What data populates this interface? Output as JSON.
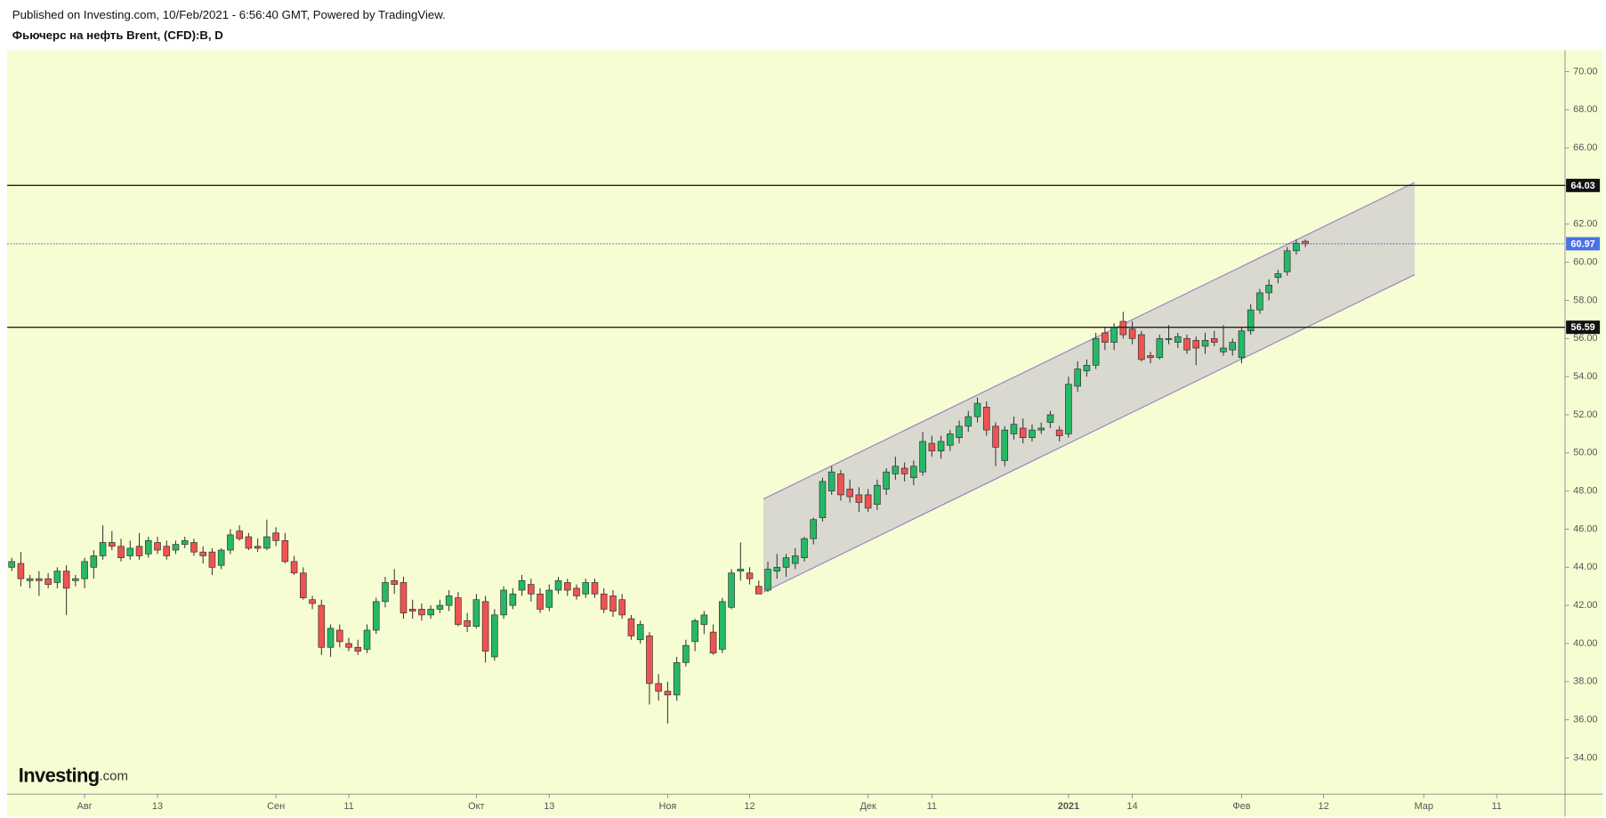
{
  "chart_data": {
    "type": "candlestick",
    "published": "Published on Investing.com, 10/Feb/2021 - 6:56:40 GMT, Powered by TradingView.",
    "title": "Фьючерс на нефть Brent, (CFD):B, D",
    "logo": {
      "brand": "Investing",
      "suffix": ".com"
    },
    "up_color": "#26b865",
    "down_color": "#ef5350",
    "categories": [
      null,
      null,
      null,
      null,
      null,
      null,
      null,
      null,
      "Авг",
      null,
      null,
      null,
      null,
      null,
      null,
      null,
      "13",
      null,
      null,
      null,
      null,
      null,
      null,
      null,
      null,
      null,
      null,
      null,
      null,
      "Сен",
      null,
      null,
      null,
      null,
      null,
      null,
      null,
      "11",
      null,
      null,
      null,
      null,
      null,
      null,
      null,
      null,
      null,
      null,
      null,
      null,
      null,
      "Окт",
      null,
      null,
      null,
      null,
      null,
      null,
      null,
      "13",
      null,
      null,
      null,
      null,
      null,
      null,
      null,
      null,
      null,
      null,
      null,
      null,
      "Ноя",
      null,
      null,
      null,
      null,
      null,
      null,
      null,
      null,
      "12",
      null,
      null,
      null,
      null,
      null,
      null,
      null,
      null,
      null,
      null,
      null,
      null,
      "Дек",
      null,
      null,
      null,
      null,
      null,
      null,
      "11",
      null,
      null,
      null,
      null,
      null,
      null,
      null,
      null,
      null,
      null,
      null,
      null,
      null,
      null,
      "2021",
      null,
      null,
      null,
      null,
      null,
      null,
      "14",
      null,
      null,
      null,
      null,
      null,
      null,
      null,
      null,
      null,
      null,
      null,
      "Фев",
      null,
      null,
      null,
      null,
      null,
      null,
      null,
      null,
      "12",
      null,
      null,
      null,
      null,
      null,
      null,
      null,
      null,
      null,
      null,
      "Мар",
      null,
      null,
      null,
      null,
      null,
      null,
      null,
      "11",
      null,
      null,
      null,
      null,
      null,
      null,
      null
    ],
    "open": [
      44.0,
      44.2,
      43.3,
      43.4,
      43.4,
      43.2,
      43.8,
      43.3,
      43.4,
      44.0,
      44.6,
      45.3,
      45.1,
      44.6,
      45.1,
      44.7,
      45.3,
      45.1,
      44.9,
      45.2,
      45.3,
      44.8,
      44.8,
      44.1,
      44.9,
      45.9,
      45.6,
      45.1,
      45.0,
      45.8,
      45.4,
      44.3,
      43.7,
      42.3,
      42.0,
      39.8,
      40.7,
      40.0,
      39.8,
      39.7,
      40.7,
      42.2,
      43.3,
      43.2,
      41.8,
      41.8,
      41.5,
      41.8,
      42.0,
      42.4,
      41.2,
      40.9,
      42.2,
      39.3,
      41.5,
      42.0,
      42.8,
      43.1,
      42.6,
      41.9,
      42.8,
      43.2,
      42.9,
      42.6,
      43.2,
      42.6,
      42.5,
      42.3,
      41.3,
      40.2,
      40.4,
      37.9,
      37.5,
      37.3,
      39.0,
      40.1,
      41.0,
      40.6,
      39.7,
      41.9,
      43.8,
      43.7,
      43.0,
      42.8,
      43.8,
      44.0,
      44.2,
      44.5,
      45.5,
      46.6,
      48.0,
      48.9,
      48.1,
      47.8,
      47.8,
      47.3,
      48.1,
      48.9,
      49.2,
      48.7,
      49.0,
      50.5,
      50.1,
      50.4,
      50.8,
      51.4,
      51.9,
      52.4,
      51.4,
      49.6,
      51.0,
      51.3,
      50.8,
      51.2,
      51.6,
      51.2,
      51.0,
      53.5,
      54.3,
      54.6,
      56.3,
      55.8,
      56.9,
      56.5,
      56.2,
      55.1,
      55.0,
      56.0,
      55.8,
      56.0,
      55.9,
      55.6,
      56.0,
      55.3,
      55.4,
      55.0,
      56.4,
      57.5,
      58.4,
      59.2,
      59.5,
      60.6,
      61.1,
      null,
      null,
      null,
      null,
      null,
      null,
      null,
      null,
      null,
      null,
      null,
      null,
      null,
      null,
      null,
      null,
      null,
      null,
      null,
      null,
      null,
      null,
      null,
      null,
      null,
      null,
      null,
      null
    ],
    "high": [
      44.5,
      44.8,
      43.6,
      43.8,
      43.7,
      44.0,
      44.1,
      43.6,
      44.5,
      44.9,
      46.2,
      45.9,
      45.5,
      45.4,
      45.8,
      45.6,
      45.6,
      45.4,
      45.4,
      45.6,
      45.5,
      45.1,
      45.0,
      45.0,
      46.0,
      46.2,
      45.8,
      45.5,
      46.5,
      46.1,
      45.8,
      44.6,
      44.0,
      42.5,
      42.3,
      41.0,
      41.0,
      40.3,
      40.2,
      41.0,
      42.4,
      43.5,
      43.9,
      43.5,
      42.3,
      42.1,
      42.0,
      42.3,
      42.8,
      42.7,
      41.6,
      42.6,
      42.5,
      41.8,
      43.0,
      42.9,
      43.6,
      43.4,
      42.9,
      43.1,
      43.5,
      43.4,
      43.1,
      43.4,
      43.4,
      42.9,
      42.8,
      42.6,
      41.5,
      41.2,
      40.6,
      38.4,
      38.0,
      39.3,
      40.2,
      41.3,
      41.7,
      41.0,
      42.4,
      43.9,
      45.3,
      44.0,
      43.3,
      44.3,
      44.7,
      44.7,
      45.0,
      45.6,
      46.6,
      48.7,
      49.3,
      49.1,
      48.6,
      48.2,
      48.1,
      48.6,
      49.2,
      49.8,
      49.5,
      49.6,
      51.1,
      50.9,
      50.9,
      51.2,
      51.7,
      52.2,
      52.9,
      52.7,
      51.6,
      51.4,
      51.9,
      51.8,
      51.5,
      51.6,
      52.2,
      51.4,
      54.0,
      54.8,
      54.9,
      56.3,
      56.6,
      56.8,
      57.4,
      56.9,
      56.4,
      55.3,
      56.2,
      56.7,
      56.3,
      56.2,
      56.1,
      56.3,
      56.4,
      56.7,
      56.0,
      56.6,
      57.8,
      58.6,
      59.1,
      59.6,
      60.8,
      61.2,
      61.2,
      null,
      null,
      null,
      null,
      null,
      null,
      null,
      null,
      null,
      null,
      null,
      null,
      null,
      null,
      null,
      null,
      null,
      null,
      null,
      null,
      null,
      null,
      null,
      null,
      null,
      null,
      null,
      null
    ],
    "low": [
      43.8,
      43.0,
      42.9,
      42.5,
      42.9,
      42.9,
      41.5,
      43.0,
      42.9,
      43.4,
      44.4,
      44.9,
      44.3,
      44.4,
      44.4,
      44.5,
      44.7,
      44.4,
      44.7,
      45.0,
      44.6,
      44.2,
      43.6,
      43.9,
      44.7,
      45.4,
      44.9,
      44.8,
      44.9,
      45.1,
      44.2,
      43.6,
      42.3,
      41.8,
      39.4,
      39.3,
      39.8,
      39.6,
      39.4,
      39.5,
      40.5,
      41.9,
      42.6,
      41.3,
      41.3,
      41.2,
      41.3,
      41.6,
      41.7,
      40.9,
      40.6,
      40.8,
      39.0,
      39.1,
      41.3,
      41.8,
      42.5,
      42.2,
      41.6,
      41.7,
      42.6,
      42.5,
      42.3,
      42.4,
      42.4,
      41.6,
      41.4,
      41.3,
      40.2,
      40.0,
      36.8,
      37.0,
      35.8,
      37.0,
      38.8,
      39.6,
      40.5,
      39.4,
      39.5,
      41.8,
      43.3,
      43.1,
      42.6,
      42.7,
      43.4,
      43.5,
      43.9,
      44.3,
      45.2,
      46.4,
      47.8,
      47.5,
      47.4,
      46.9,
      46.9,
      47.0,
      47.8,
      48.6,
      48.5,
      48.3,
      48.8,
      49.8,
      49.7,
      50.1,
      50.5,
      51.1,
      51.6,
      50.9,
      49.3,
      49.3,
      50.7,
      50.5,
      50.6,
      51.0,
      51.3,
      50.6,
      50.8,
      53.2,
      54.0,
      54.4,
      55.4,
      55.4,
      56.0,
      55.7,
      54.8,
      54.7,
      54.9,
      55.7,
      55.5,
      55.2,
      54.6,
      55.2,
      55.6,
      55.1,
      55.1,
      54.7,
      56.2,
      57.3,
      58.0,
      58.9,
      59.3,
      60.4,
      60.8,
      null,
      null,
      null,
      null,
      null,
      null,
      null,
      null,
      null,
      null,
      null,
      null,
      null,
      null,
      null,
      null,
      null,
      null,
      null,
      null,
      null,
      null,
      null,
      null,
      null,
      null,
      null,
      null
    ],
    "close": [
      44.3,
      43.4,
      43.4,
      43.3,
      43.1,
      43.8,
      42.9,
      43.4,
      44.3,
      44.6,
      45.3,
      45.1,
      44.5,
      45.0,
      44.6,
      45.4,
      44.9,
      44.6,
      45.2,
      45.4,
      44.8,
      44.6,
      44.0,
      44.9,
      45.7,
      45.5,
      45.0,
      45.0,
      45.6,
      45.4,
      44.3,
      43.7,
      42.4,
      42.1,
      39.8,
      40.8,
      40.1,
      39.8,
      39.6,
      40.7,
      42.2,
      43.2,
      43.1,
      41.6,
      41.7,
      41.5,
      41.8,
      42.0,
      42.5,
      41.0,
      40.9,
      42.3,
      39.6,
      41.5,
      42.8,
      42.6,
      43.3,
      42.6,
      41.8,
      42.8,
      43.3,
      42.8,
      42.5,
      43.2,
      42.6,
      41.8,
      41.7,
      41.5,
      40.4,
      41.0,
      37.9,
      37.5,
      37.3,
      39.0,
      39.9,
      41.2,
      41.5,
      39.5,
      42.2,
      43.7,
      43.9,
      43.4,
      42.6,
      43.9,
      44.0,
      44.5,
      44.6,
      45.5,
      46.5,
      48.5,
      49.0,
      47.8,
      47.7,
      47.4,
      47.1,
      48.3,
      49.0,
      49.3,
      48.9,
      49.3,
      50.6,
      50.1,
      50.6,
      51.0,
      51.4,
      51.9,
      52.6,
      51.2,
      50.3,
      51.2,
      51.5,
      50.8,
      51.2,
      51.3,
      52.0,
      50.9,
      53.6,
      54.4,
      54.6,
      56.0,
      55.8,
      56.6,
      56.2,
      56.0,
      54.9,
      55.0,
      56.0,
      56.0,
      56.1,
      55.4,
      55.5,
      55.9,
      55.8,
      55.5,
      55.8,
      56.4,
      57.5,
      58.4,
      58.8,
      59.4,
      60.6,
      61.0,
      60.97,
      null,
      null,
      null,
      null,
      null,
      null,
      null,
      null,
      null,
      null,
      null,
      null,
      null,
      null,
      null,
      null,
      null,
      null,
      null,
      null,
      null,
      null,
      null,
      null,
      null,
      null,
      null,
      null
    ],
    "ylim": [
      32.1,
      71.07
    ],
    "yticks": [
      {
        "value": 34,
        "label": "34.00"
      },
      {
        "value": 36,
        "label": "36.00"
      },
      {
        "value": 38,
        "label": "38.00"
      },
      {
        "value": 40,
        "label": "40.00"
      },
      {
        "value": 42,
        "label": "42.00"
      },
      {
        "value": 44,
        "label": "44.00"
      },
      {
        "value": 46,
        "label": "46.00"
      },
      {
        "value": 48,
        "label": "48.00"
      },
      {
        "value": 50,
        "label": "50.00"
      },
      {
        "value": 52,
        "label": "52.00"
      },
      {
        "value": 54,
        "label": "54.00"
      },
      {
        "value": 56,
        "label": "56.00"
      },
      {
        "value": 58,
        "label": "58.00"
      },
      {
        "value": 60,
        "label": "60.00"
      },
      {
        "value": 62,
        "label": "62.00"
      },
      {
        "value": 64,
        "label": "64.00"
      },
      {
        "value": 66,
        "label": "66.00"
      },
      {
        "value": 68,
        "label": "68.00"
      },
      {
        "value": 70,
        "label": "70.00"
      }
    ],
    "hlines": [
      64.03,
      56.59
    ],
    "last_price": 60.97,
    "channel": {
      "start": 82.5,
      "end": 154,
      "upper": [
        47.58,
        64.19
      ],
      "lower": [
        42.69,
        59.35
      ]
    }
  }
}
